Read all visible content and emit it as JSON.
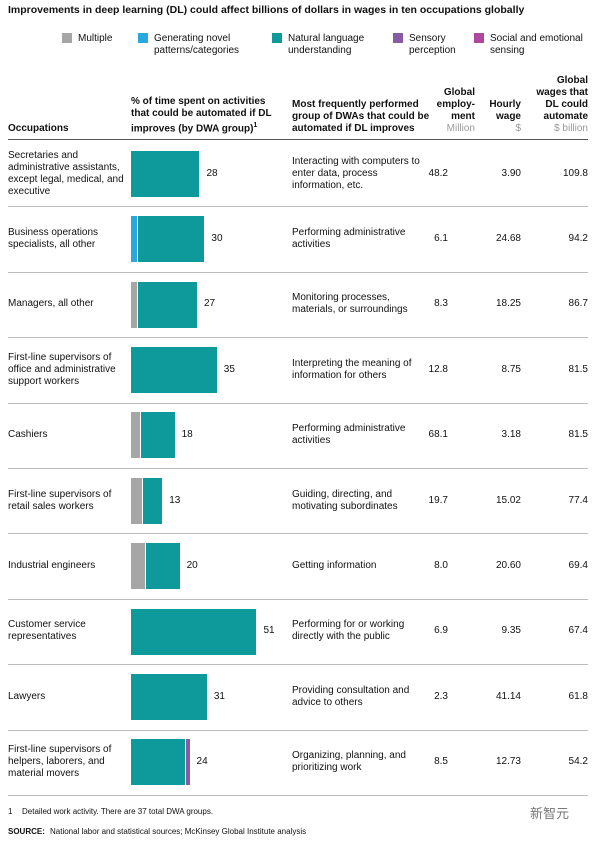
{
  "title": "Improvements in deep learning (DL) could affect billions of dollars in wages in ten occupations globally",
  "chart_data": {
    "type": "bar",
    "orientation": "horizontal",
    "stacked": true,
    "categories": [
      "Secretaries and administrative assistants, except legal, medical, and executive",
      "Business operations specialists, all other",
      "Managers, all other",
      "First-line supervisors of office and administrative support workers",
      "Cashiers",
      "First-line supervisors of retail sales workers",
      "Industrial engineers",
      "Customer service representatives",
      "Lawyers",
      "First-line supervisors of helpers, laborers, and material movers"
    ],
    "series": [
      {
        "name": "Multiple",
        "color": "#a6a6a6",
        "values": [
          0,
          0,
          3,
          0,
          4,
          5,
          6,
          0,
          0,
          0
        ]
      },
      {
        "name": "Generating novel patterns/categories",
        "color": "#29a8e0",
        "values": [
          0,
          3,
          0,
          0,
          0,
          0,
          0,
          0,
          0,
          0
        ]
      },
      {
        "name": "Natural language understanding",
        "color": "#0e9a9a",
        "values": [
          28,
          27,
          24,
          35,
          14,
          8,
          14,
          51,
          31,
          22
        ]
      },
      {
        "name": "Sensory perception",
        "color": "#8a5ba5",
        "values": [
          0,
          0,
          0,
          0,
          0,
          0,
          0,
          0,
          0,
          2
        ]
      },
      {
        "name": "Social and emotional sensing",
        "color": "#b0469e",
        "values": [
          0,
          0,
          0,
          0,
          0,
          0,
          0,
          0,
          0,
          0
        ]
      }
    ],
    "totals": [
      28,
      30,
      27,
      35,
      18,
      13,
      20,
      51,
      31,
      24
    ],
    "xlim": [
      0,
      55
    ]
  },
  "table": {
    "columns": [
      {
        "label": "Occupations"
      },
      {
        "label": "% of time spent on activities that could be automated if DL improves (by DWA group)",
        "note": "1"
      },
      {
        "label": "Most frequently performed group of DWAs that could be automated if DL improves"
      },
      {
        "label": "Global employ-ment",
        "unit": "Million"
      },
      {
        "label": "Hourly wage",
        "unit": "$"
      },
      {
        "label": "Global wages that DL could automate",
        "unit": "$ billion"
      }
    ],
    "rows": [
      [
        "Interacting with computers to enter data, process information, etc.",
        "48.2",
        "3.90",
        "109.8"
      ],
      [
        "Performing administrative activities",
        "6.1",
        "24.68",
        "94.2"
      ],
      [
        "Monitoring processes, materials, or surroundings",
        "8.3",
        "18.25",
        "86.7"
      ],
      [
        "Interpreting the meaning of information for others",
        "12.8",
        "8.75",
        "81.5"
      ],
      [
        "Performing administrative activities",
        "68.1",
        "3.18",
        "81.5"
      ],
      [
        "Guiding, directing, and motivating subordinates",
        "19.7",
        "15.02",
        "77.4"
      ],
      [
        "Getting information",
        "8.0",
        "20.60",
        "69.4"
      ],
      [
        "Performing for or working directly with the public",
        "6.9",
        "9.35",
        "67.4"
      ],
      [
        "Providing consultation and advice to others",
        "2.3",
        "41.14",
        "61.8"
      ],
      [
        "Organizing, planning, and prioritizing work",
        "8.5",
        "12.73",
        "54.2"
      ]
    ]
  },
  "footnote": {
    "marker": "1",
    "text": "Detailed work activity. There are 37 total DWA groups."
  },
  "source": {
    "label": "SOURCE:",
    "text": "National labor and statistical sources; McKinsey Global Institute analysis"
  },
  "watermark": "新智元"
}
